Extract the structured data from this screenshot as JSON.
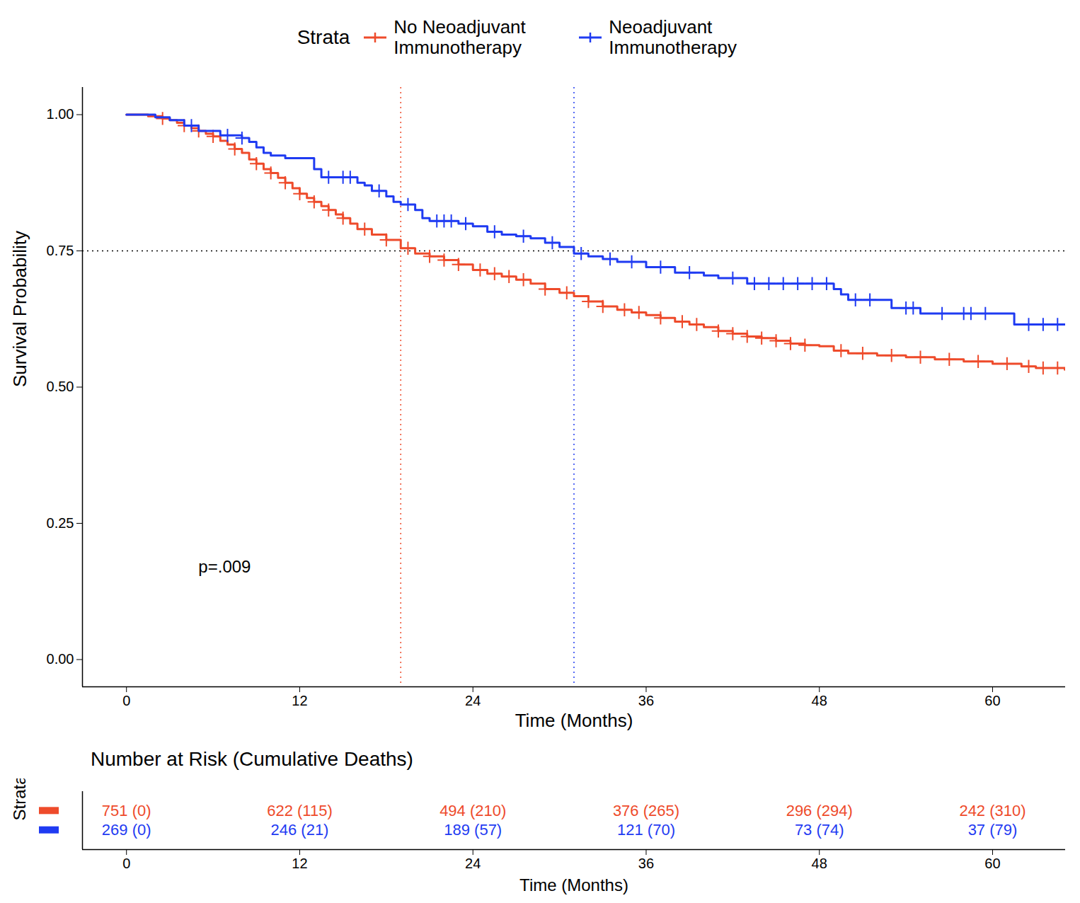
{
  "chart_data": {
    "type": "step",
    "x_label": "Time (Months)",
    "y_label": "Survival Probability",
    "legend_title": "Strata",
    "legend": "top",
    "xlim": [
      -3.05,
      65.05
    ],
    "xticks": [
      0,
      12,
      24,
      36,
      48,
      60
    ],
    "ylim": [
      -0.05,
      1.05
    ],
    "yticks": [
      {
        "value": 0,
        "label": "0.00"
      },
      {
        "value": 0.25,
        "label": "0.25"
      },
      {
        "value": 0.5,
        "label": "0.50"
      },
      {
        "value": 0.75,
        "label": "0.75"
      },
      {
        "value": 1,
        "label": "1.00"
      }
    ],
    "reference_y": 0.75,
    "annotations": [
      {
        "text": "p=.009",
        "x": 6.8,
        "y": 0.17
      }
    ],
    "series": [
      {
        "name": "No Neoadjuvant Immunotherapy",
        "color": "#EE4B2B",
        "marker": "plus",
        "x": [
          0,
          1.5,
          2.5,
          3,
          3.5,
          4,
          4.5,
          5,
          5.5,
          6,
          6.5,
          7,
          7.5,
          8,
          8.5,
          9,
          9.5,
          10,
          10.5,
          11,
          11.5,
          12,
          12.5,
          13,
          13.5,
          14,
          14.5,
          15,
          15.5,
          16,
          17,
          18,
          19,
          20,
          21,
          22,
          23,
          24,
          25,
          26,
          27,
          28,
          29,
          30,
          31,
          32,
          33,
          34,
          35,
          36,
          37,
          38,
          39,
          40,
          41,
          42,
          43,
          44,
          45,
          46,
          47,
          48,
          49,
          50,
          52,
          54,
          56,
          58,
          60,
          62,
          63,
          65
        ],
        "values": [
          1,
          0.997,
          0.993,
          0.99,
          0.985,
          0.98,
          0.975,
          0.97,
          0.965,
          0.96,
          0.952,
          0.945,
          0.937,
          0.93,
          0.918,
          0.91,
          0.9,
          0.893,
          0.884,
          0.875,
          0.865,
          0.855,
          0.847,
          0.84,
          0.832,
          0.825,
          0.817,
          0.81,
          0.8,
          0.79,
          0.78,
          0.77,
          0.755,
          0.745,
          0.74,
          0.733,
          0.725,
          0.715,
          0.708,
          0.703,
          0.697,
          0.69,
          0.68,
          0.673,
          0.667,
          0.657,
          0.648,
          0.642,
          0.637,
          0.632,
          0.627,
          0.62,
          0.615,
          0.61,
          0.603,
          0.598,
          0.593,
          0.59,
          0.585,
          0.58,
          0.577,
          0.575,
          0.567,
          0.562,
          0.558,
          0.555,
          0.551,
          0.547,
          0.543,
          0.538,
          0.535,
          0.532
        ],
        "censored_x": [
          2.5,
          4,
          5,
          6,
          7.5,
          9,
          10,
          11,
          12,
          13,
          14,
          15,
          16.5,
          18,
          19.5,
          21,
          22,
          23,
          24.5,
          25.5,
          26.5,
          27.5,
          29,
          30.5,
          32,
          33,
          34.5,
          35.5,
          37,
          38.5,
          39.5,
          41,
          42,
          43,
          44,
          45,
          46,
          47,
          49.5,
          51,
          53,
          55,
          57,
          59,
          61,
          62.5,
          63.5,
          64.5
        ],
        "reference_x": 19
      },
      {
        "name": "Neoadjuvant Immunotherapy",
        "color": "#1F3BF2",
        "marker": "plus",
        "x": [
          0,
          2,
          3,
          4,
          5,
          6.5,
          8,
          8.5,
          9,
          9.5,
          10,
          11,
          13,
          13.5,
          16,
          16.5,
          17,
          18,
          18.5,
          19,
          20,
          20.5,
          21,
          23,
          24,
          25,
          26,
          27,
          28,
          29,
          30,
          31,
          32,
          33,
          34,
          36,
          38,
          40,
          41,
          43,
          49,
          49.5,
          50,
          53,
          55,
          61.5,
          65
        ],
        "values": [
          1,
          0.995,
          0.99,
          0.98,
          0.97,
          0.962,
          0.957,
          0.95,
          0.94,
          0.93,
          0.925,
          0.92,
          0.9,
          0.885,
          0.875,
          0.87,
          0.86,
          0.85,
          0.84,
          0.835,
          0.825,
          0.81,
          0.805,
          0.8,
          0.795,
          0.785,
          0.78,
          0.777,
          0.773,
          0.765,
          0.757,
          0.745,
          0.74,
          0.735,
          0.73,
          0.72,
          0.71,
          0.705,
          0.7,
          0.69,
          0.68,
          0.67,
          0.66,
          0.645,
          0.635,
          0.615,
          0.615
        ],
        "censored_x": [
          4.5,
          7,
          8,
          14,
          15,
          15.5,
          17.5,
          19.5,
          21.5,
          22,
          22.5,
          23.5,
          25.5,
          27.5,
          29.5,
          31.5,
          33.5,
          35,
          37,
          39,
          42,
          43.5,
          44.5,
          45.5,
          46.5,
          47.5,
          48.5,
          50.5,
          51.5,
          54,
          54.5,
          56.5,
          58,
          58.5,
          59.5,
          62.5,
          63.5,
          64.5
        ],
        "reference_x": 31
      }
    ],
    "risk_table": {
      "title": "Number at Risk (Cumulative Deaths)",
      "y_label": "Strata",
      "x_label": "Time (Months)",
      "times": [
        0,
        12,
        24,
        36,
        48,
        60
      ],
      "labels": [
        [
          "751 (0)",
          "622 (115)",
          "494 (210)",
          "376 (265)",
          "296 (294)",
          "242 (310)"
        ],
        [
          "269 (0)",
          "246 (21)",
          "189 (57)",
          "121 (70)",
          "73 (74)",
          "37 (79)"
        ]
      ]
    }
  }
}
